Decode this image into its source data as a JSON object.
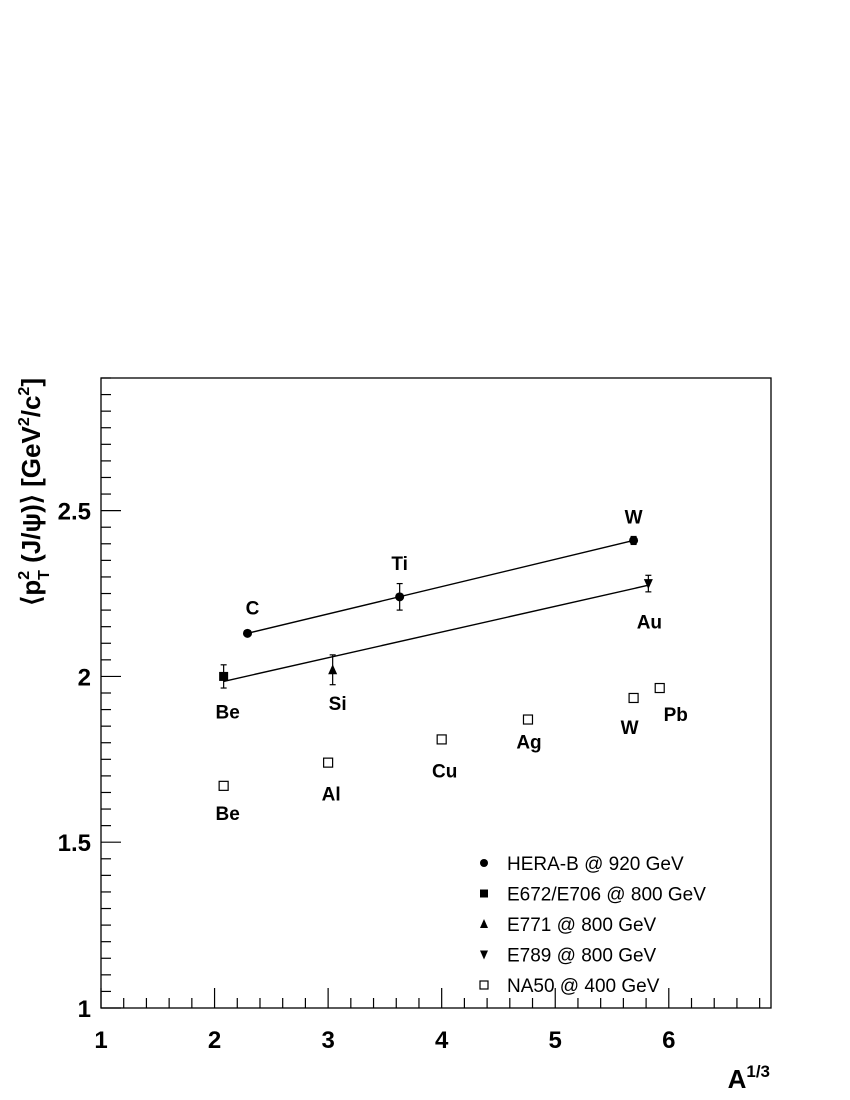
{
  "chart_data": {
    "type": "scatter",
    "xlabel": "A",
    "xlabel_sup": "1/3",
    "ylabel_parts": [
      "⟨p",
      "2",
      "T",
      " (J/ψ)⟩ [GeV",
      "2",
      "/c",
      "2",
      "]"
    ],
    "xlim": [
      1,
      6.9
    ],
    "ylim": [
      1,
      2.9
    ],
    "x_ticks": [
      1,
      2,
      3,
      4,
      5,
      6
    ],
    "x_tick_labels": [
      "1",
      "2",
      "3",
      "4",
      "5",
      "6"
    ],
    "y_ticks": [
      1,
      1.5,
      2,
      2.5
    ],
    "y_tick_labels": [
      "1",
      "1.5",
      "2",
      "2.5"
    ],
    "grid": false,
    "legend_position": "bottom-right",
    "series": [
      {
        "name": "HERA-B @ 920 GeV",
        "marker": "circle-filled",
        "points": [
          {
            "x": 2.29,
            "y": 2.13,
            "err": 0.006,
            "label": "C"
          },
          {
            "x": 3.63,
            "y": 2.24,
            "err": 0.04,
            "label": "Ti"
          },
          {
            "x": 5.69,
            "y": 2.41,
            "err": 0.012,
            "label": "W"
          }
        ],
        "fit": [
          [
            2.29,
            2.13
          ],
          [
            5.69,
            2.41
          ]
        ]
      },
      {
        "name": "E672/E706 @ 800 GeV",
        "marker": "square-filled",
        "points": [
          {
            "x": 2.08,
            "y": 2.0,
            "err": 0.035,
            "label": "Be"
          }
        ]
      },
      {
        "name": "E771 @ 800 GeV",
        "marker": "triangle-up-filled",
        "points": [
          {
            "x": 3.04,
            "y": 2.02,
            "err": 0.045,
            "label": "Si"
          }
        ]
      },
      {
        "name": "E789 @ 800 GeV",
        "marker": "triangle-down-filled",
        "points": [
          {
            "x": 5.82,
            "y": 2.28,
            "err": 0.025,
            "label": "Au"
          }
        ]
      },
      {
        "name": "NA50 @ 400 GeV",
        "marker": "square-open",
        "points": [
          {
            "x": 2.08,
            "y": 1.67,
            "err": 0.006,
            "label": "Be"
          },
          {
            "x": 3.0,
            "y": 1.74,
            "err": 0.006,
            "label": "Al"
          },
          {
            "x": 4.0,
            "y": 1.81,
            "err": 0.006,
            "label": "Cu"
          },
          {
            "x": 4.76,
            "y": 1.87,
            "err": 0.006,
            "label": "Ag"
          },
          {
            "x": 5.69,
            "y": 1.935,
            "err": 0.006,
            "label": "W"
          },
          {
            "x": 5.92,
            "y": 1.965,
            "err": 0.006,
            "label": "Pb"
          }
        ],
        "fit": [
          [
            2.08,
            1.67
          ],
          [
            5.92,
            1.965
          ]
        ]
      }
    ],
    "fits": [
      {
        "x": [
          2.29,
          5.69
        ],
        "y": [
          2.13,
          2.41
        ]
      },
      {
        "x": [
          2.08,
          5.82
        ],
        "y": [
          1.985,
          2.275
        ]
      }
    ]
  }
}
